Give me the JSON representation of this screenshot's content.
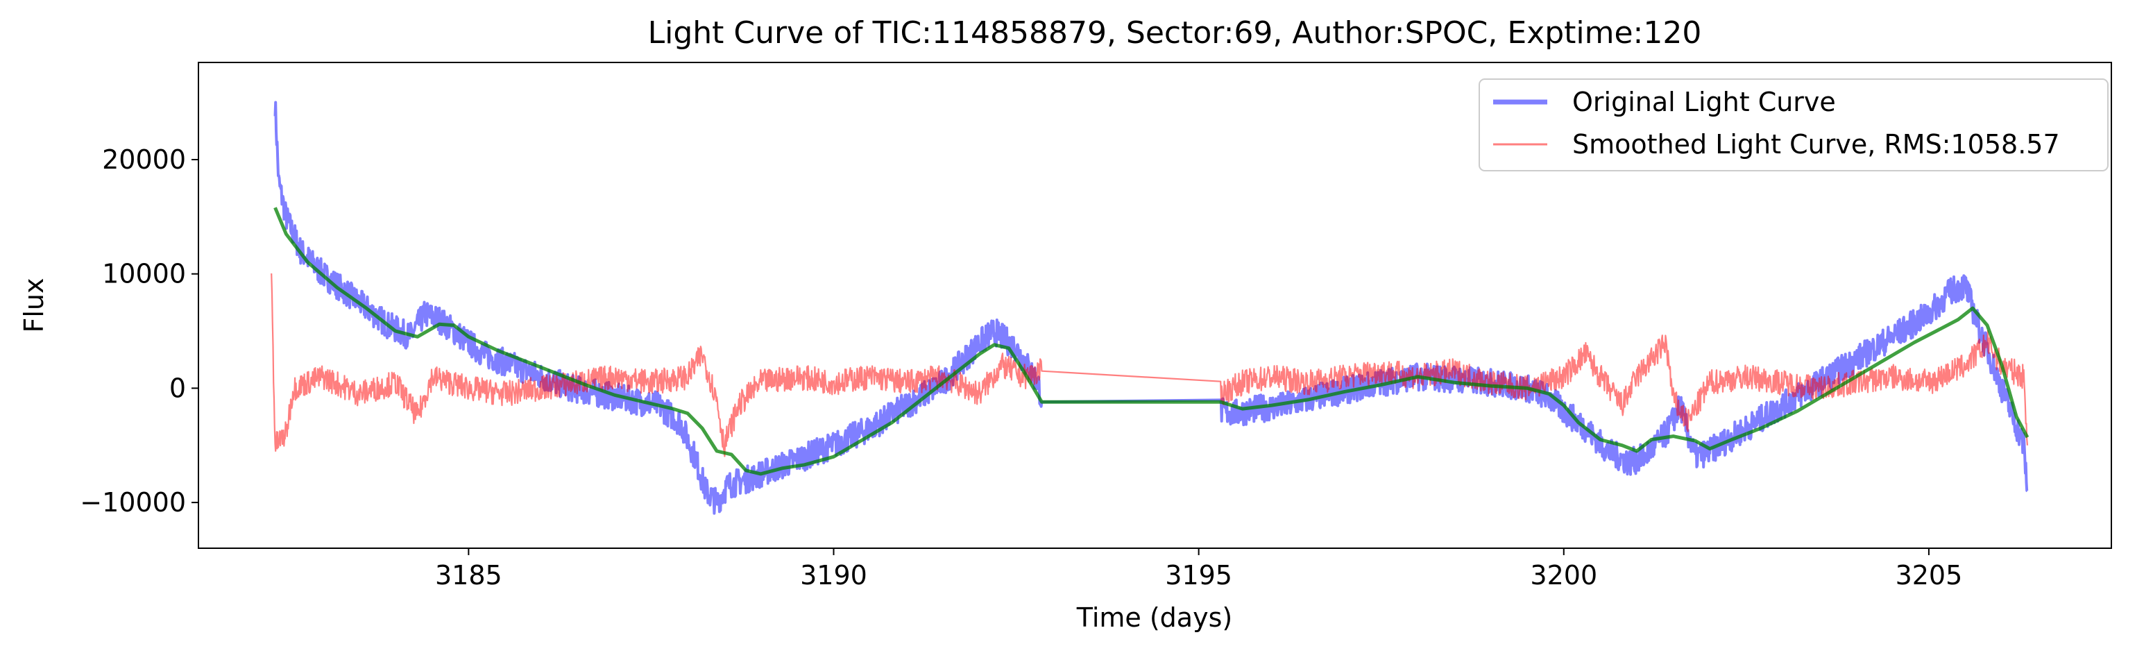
{
  "chart_data": {
    "type": "line",
    "title": "Light Curve of TIC:114858879, Sector:69, Author:SPOC, Exptime:120",
    "xlabel": "Time (days)",
    "ylabel": "Flux",
    "xlim": [
      3181.3,
      3207.5
    ],
    "ylim": [
      -14000,
      28500
    ],
    "xticks": [
      3185,
      3190,
      3195,
      3200,
      3205
    ],
    "xtick_labels": [
      "3185",
      "3190",
      "3195",
      "3200",
      "3205"
    ],
    "yticks": [
      -10000,
      0,
      10000,
      20000
    ],
    "ytick_labels": [
      "−10000",
      "0",
      "10000",
      "20000"
    ],
    "grid": false,
    "legend_position": "top-right",
    "legend": [
      {
        "label": "Original Light Curve",
        "color": "#0000ff",
        "alpha": 0.5,
        "width": "thick"
      },
      {
        "label": "Smoothed Light Curve, RMS:1058.57",
        "color": "#ff0000",
        "alpha": 0.5,
        "width": "thin"
      }
    ],
    "series": [
      {
        "name": "Original Light Curve",
        "color": "#0000ff",
        "noise": 1200,
        "x": [
          3182.35,
          3182.4,
          3182.5,
          3182.7,
          3183.0,
          3183.3,
          3183.6,
          3183.9,
          3184.2,
          3184.4,
          3184.6,
          3184.9,
          3185.2,
          3185.6,
          3186.0,
          3186.4,
          3186.8,
          3187.2,
          3187.6,
          3187.9,
          3188.1,
          3188.25,
          3188.4,
          3188.55,
          3188.8,
          3189.2,
          3189.6,
          3190.0,
          3190.5,
          3191.0,
          3191.5,
          3192.0,
          3192.2,
          3192.5,
          3192.8,
          3192.85,
          3195.3,
          3195.5,
          3195.8,
          3196.2,
          3196.6,
          3197.0,
          3197.5,
          3198.0,
          3198.5,
          3199.0,
          3199.5,
          3199.8,
          3200.0,
          3200.3,
          3200.6,
          3200.9,
          3201.1,
          3201.4,
          3201.6,
          3201.7,
          3201.8,
          3202.0,
          3202.5,
          3203.0,
          3203.5,
          3204.0,
          3204.5,
          3205.0,
          3205.3,
          3205.5,
          3205.7,
          3206.0,
          3206.3,
          3206.35
        ],
        "y": [
          25000,
          18000,
          15000,
          12000,
          10000,
          8500,
          7000,
          5500,
          4500,
          6500,
          6000,
          4500,
          3000,
          2000,
          1000,
          0,
          -500,
          -1000,
          -1500,
          -3000,
          -6000,
          -9000,
          -10000,
          -8500,
          -8000,
          -7000,
          -6000,
          -5000,
          -3500,
          -1500,
          500,
          4000,
          5000,
          3500,
          500,
          -1200,
          -2000,
          -2200,
          -1800,
          -1500,
          -800,
          -200,
          500,
          1000,
          800,
          500,
          0,
          -800,
          -2000,
          -3500,
          -5500,
          -6500,
          -6000,
          -4000,
          -1500,
          -4000,
          -6000,
          -5500,
          -3500,
          -1500,
          500,
          2500,
          4500,
          6500,
          8500,
          9000,
          5000,
          0,
          -5000,
          -9000
        ]
      },
      {
        "name": "Smoothed Light Curve, RMS:1058.57",
        "color": "#ff0000",
        "noise": 1100,
        "x": [
          3182.3,
          3182.35,
          3182.5,
          3182.6,
          3183.0,
          3183.5,
          3184.0,
          3184.3,
          3184.5,
          3185.0,
          3185.5,
          3186.0,
          3186.5,
          3187.0,
          3187.5,
          3188.0,
          3188.2,
          3188.4,
          3188.5,
          3188.7,
          3189.0,
          3189.5,
          3190.0,
          3190.5,
          3191.0,
          3191.5,
          3192.0,
          3192.3,
          3192.6,
          3192.85,
          3195.3,
          3195.6,
          3196.0,
          3196.5,
          3197.0,
          3197.5,
          3198.0,
          3198.5,
          3199.0,
          3199.5,
          3200.0,
          3200.3,
          3200.5,
          3200.8,
          3201.0,
          3201.2,
          3201.4,
          3201.5,
          3201.7,
          3202.0,
          3202.5,
          3203.0,
          3203.5,
          3204.0,
          3204.5,
          3205.0,
          3205.5,
          3205.8,
          3206.0,
          3206.3,
          3206.35
        ],
        "y": [
          10000,
          -5000,
          -4000,
          0,
          1000,
          -500,
          500,
          -2500,
          1000,
          0,
          -500,
          0,
          500,
          1000,
          500,
          1000,
          3000,
          -1000,
          -5000,
          -1500,
          500,
          1000,
          500,
          1000,
          500,
          1000,
          -500,
          2000,
          1000,
          1500,
          -500,
          500,
          1000,
          500,
          1000,
          1500,
          1000,
          1500,
          500,
          0,
          1000,
          3000,
          1000,
          -1500,
          1000,
          2500,
          4000,
          -1000,
          -3000,
          500,
          1000,
          500,
          0,
          500,
          1000,
          500,
          2000,
          4000,
          2000,
          1000,
          -5000
        ]
      },
      {
        "name": "",
        "color": "#008000",
        "noise": 0,
        "x": [
          3182.35,
          3182.5,
          3182.8,
          3183.2,
          3183.6,
          3184.0,
          3184.3,
          3184.6,
          3184.8,
          3185.0,
          3185.4,
          3185.8,
          3186.2,
          3186.6,
          3187.0,
          3187.4,
          3187.8,
          3188.0,
          3188.2,
          3188.4,
          3188.6,
          3188.8,
          3189.0,
          3189.3,
          3189.6,
          3190.0,
          3190.4,
          3190.8,
          3191.2,
          3191.6,
          3192.0,
          3192.2,
          3192.4,
          3192.6,
          3192.85,
          3195.3,
          3195.6,
          3196.0,
          3196.5,
          3197.0,
          3197.5,
          3198.0,
          3198.5,
          3199.0,
          3199.5,
          3199.8,
          3200.0,
          3200.2,
          3200.5,
          3200.8,
          3201.0,
          3201.2,
          3201.5,
          3201.8,
          3202.0,
          3202.3,
          3202.7,
          3203.2,
          3203.6,
          3204.0,
          3204.4,
          3204.8,
          3205.1,
          3205.4,
          3205.6,
          3205.8,
          3206.0,
          3206.2,
          3206.35
        ],
        "y": [
          15800,
          13500,
          11000,
          8800,
          7000,
          5000,
          4500,
          5600,
          5500,
          4500,
          3300,
          2300,
          1300,
          300,
          -600,
          -1200,
          -1800,
          -2200,
          -3500,
          -5500,
          -5800,
          -7200,
          -7500,
          -7000,
          -6700,
          -6000,
          -4500,
          -3000,
          -1000,
          1000,
          3000,
          3800,
          3500,
          1500,
          -1200,
          -1200,
          -1800,
          -1500,
          -1000,
          -300,
          300,
          1000,
          500,
          200,
          0,
          -500,
          -1500,
          -3000,
          -4500,
          -5000,
          -5500,
          -4500,
          -4200,
          -4600,
          -5300,
          -4500,
          -3500,
          -2000,
          -500,
          1000,
          2500,
          4000,
          5000,
          6000,
          7000,
          5500,
          2000,
          -2500,
          -4300
        ]
      }
    ]
  }
}
